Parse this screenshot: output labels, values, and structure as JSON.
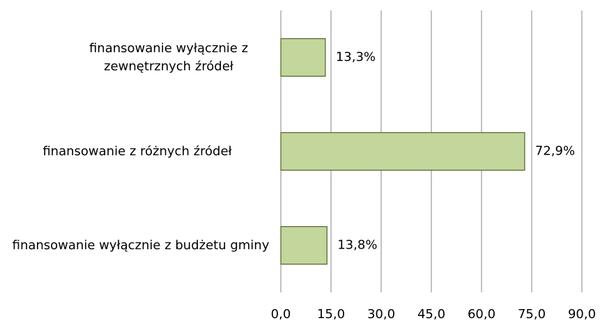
{
  "chart_data": {
    "type": "bar",
    "orientation": "horizontal",
    "categories": [
      "finansowanie wyłącznie z zewnętrznych źródeł",
      "finansowanie z różnych źródeł",
      "finansowanie wyłącznie z budżetu gminy"
    ],
    "values": [
      13.3,
      72.9,
      13.8
    ],
    "value_labels": [
      "13,3%",
      "72,9%",
      "13,8%"
    ],
    "color": "#c3d69b",
    "edge_color": "#4f6228",
    "xlim": [
      0,
      90
    ],
    "xticks": [
      {
        "value": 0,
        "label": "0,0"
      },
      {
        "value": 15,
        "label": "15,0"
      },
      {
        "value": 30,
        "label": "30,0"
      },
      {
        "value": 45,
        "label": "45,0"
      },
      {
        "value": 60,
        "label": "60,0"
      },
      {
        "value": 75,
        "label": "75,0"
      },
      {
        "value": 90,
        "label": "90,0"
      }
    ],
    "grid": true
  }
}
